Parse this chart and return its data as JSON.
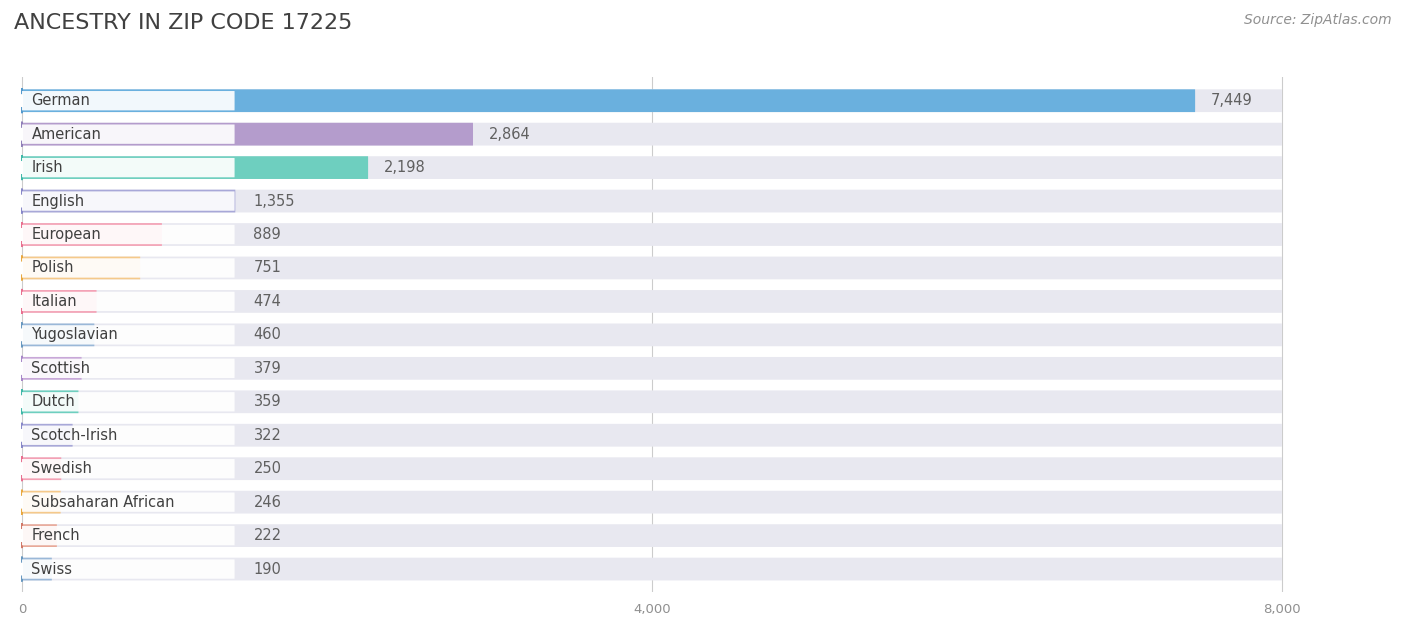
{
  "title": "ANCESTRY IN ZIP CODE 17225",
  "source": "Source: ZipAtlas.com",
  "categories": [
    "German",
    "American",
    "Irish",
    "English",
    "European",
    "Polish",
    "Italian",
    "Yugoslavian",
    "Scottish",
    "Dutch",
    "Scotch-Irish",
    "Swedish",
    "Subsaharan African",
    "French",
    "Swiss"
  ],
  "values": [
    7449,
    2864,
    2198,
    1355,
    889,
    751,
    474,
    460,
    379,
    359,
    322,
    250,
    246,
    222,
    190
  ],
  "bar_colors": [
    "#6ab0de",
    "#b49ccc",
    "#6ecfbf",
    "#a8a8d8",
    "#f4a0b4",
    "#f5c98a",
    "#f4a0b4",
    "#9ab8d8",
    "#c8a8d8",
    "#6ecfbf",
    "#a8a8d8",
    "#f4a0b4",
    "#f5c98a",
    "#e8a898",
    "#9ab8d8"
  ],
  "circle_colors": [
    "#5599cc",
    "#9080b8",
    "#40b8a8",
    "#8888c8",
    "#e87090",
    "#e8a840",
    "#e87090",
    "#6898c0",
    "#a888c8",
    "#40b8a8",
    "#8888c8",
    "#e87090",
    "#e8a840",
    "#d07868",
    "#6898c0"
  ],
  "bg_bar_color": "#e8e8f0",
  "xlim": [
    0,
    8000
  ],
  "xtick_labels": [
    "0",
    "4,000",
    "8,000"
  ],
  "background_color": "#ffffff",
  "title_color": "#404040",
  "label_color": "#404040",
  "value_color": "#606060",
  "source_color": "#909090",
  "title_fontsize": 16,
  "label_fontsize": 10.5,
  "value_fontsize": 10.5,
  "source_fontsize": 10
}
